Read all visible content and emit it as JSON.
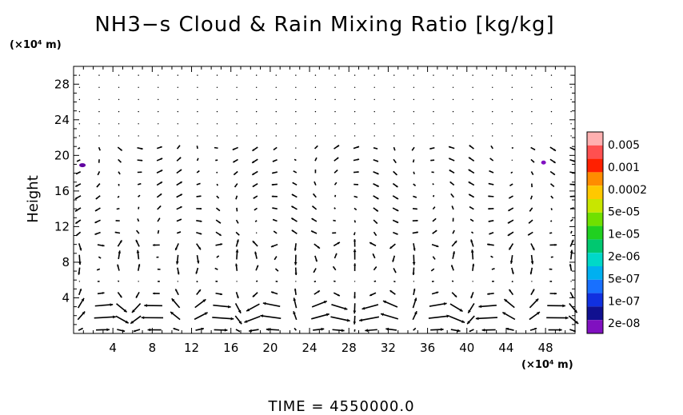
{
  "chart_data": {
    "type": "vector-field",
    "title": "NH3−s Cloud & Rain Mixing Ratio [kg/kg]",
    "ylabel": "Height",
    "xunit": "(×10⁴ m)",
    "yunit": "(×10⁴ m)",
    "xlim": [
      0,
      51
    ],
    "ylim": [
      0,
      30
    ],
    "x_ticks": [
      4,
      8,
      12,
      16,
      20,
      24,
      28,
      32,
      36,
      40,
      44,
      48
    ],
    "y_ticks": [
      4,
      8,
      12,
      16,
      20,
      24,
      28
    ],
    "colorbar": {
      "labels": [
        "0.005",
        "0.001",
        "0.0002",
        "5e-05",
        "1e-05",
        "2e-06",
        "5e-07",
        "1e-07",
        "2e-08"
      ],
      "colors": [
        "#ffb0b0",
        "#ff5050",
        "#ff2000",
        "#ff8c00",
        "#ffc800",
        "#c8e600",
        "#70e000",
        "#20d020",
        "#00c870",
        "#00d8c8",
        "#00b0f0",
        "#1870ff",
        "#1030e0",
        "#101090",
        "#8010c0"
      ]
    },
    "features": [
      {
        "type": "cloud-patch",
        "x": 0.9,
        "y": 18.9,
        "color": "#6000a0"
      },
      {
        "type": "cloud-patch",
        "x": 47.8,
        "y": 19.2,
        "color": "#8010c0"
      }
    ],
    "time_label": "TIME  =  4550000.0"
  }
}
